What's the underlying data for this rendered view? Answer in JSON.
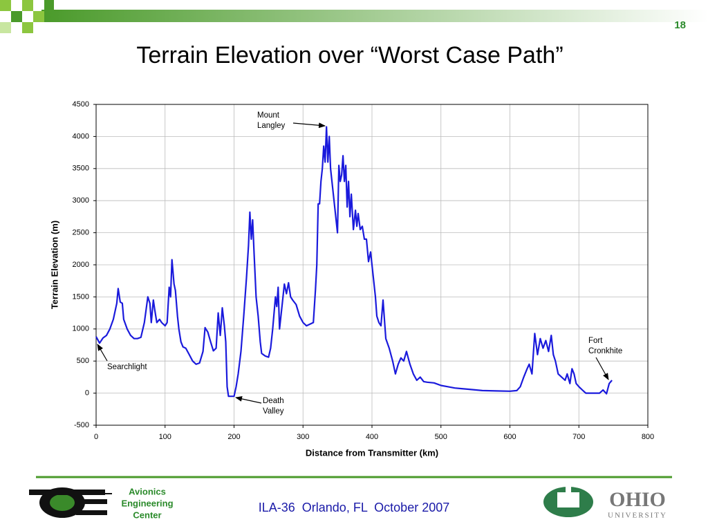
{
  "slide": {
    "page_number": "18",
    "footer": "ILA-36  Orlando, FL  October 2007",
    "left_logo": [
      "Avionics",
      "Engineering",
      "Center"
    ],
    "right_logo": [
      "OHIO",
      "UNIVERSITY"
    ]
  },
  "chart_data": {
    "type": "line",
    "title": "Terrain Elevation over “Worst Case Path”",
    "xlabel": "Distance from Transmitter (km)",
    "ylabel": "Terrain Elevation (m)",
    "color": "#1a1adc",
    "grid": true,
    "xlim": [
      0,
      800
    ],
    "xticks": [
      0,
      100,
      200,
      300,
      400,
      500,
      600,
      700,
      800
    ],
    "ylim": [
      -500,
      4500
    ],
    "yticks": [
      -500,
      0,
      500,
      1000,
      1500,
      2000,
      2500,
      3000,
      3500,
      4000,
      4500
    ],
    "annotations": [
      {
        "text": [
          "Mount",
          "Langley"
        ]
      },
      {
        "text": [
          "Searchlight"
        ]
      },
      {
        "text": [
          "Death",
          "Valley"
        ]
      },
      {
        "text": [
          "Fort",
          "Cronkhite"
        ]
      }
    ],
    "x": [
      0,
      5,
      10,
      15,
      20,
      25,
      30,
      32,
      35,
      38,
      40,
      45,
      50,
      55,
      60,
      65,
      70,
      75,
      78,
      80,
      83,
      85,
      88,
      92,
      95,
      100,
      103,
      106,
      108,
      110,
      113,
      115,
      118,
      120,
      123,
      126,
      130,
      135,
      140,
      145,
      150,
      155,
      158,
      162,
      166,
      170,
      174,
      177,
      180,
      183,
      186,
      188,
      190,
      192,
      200,
      203,
      206,
      210,
      214,
      218,
      221,
      223,
      225,
      227,
      229,
      232,
      235,
      238,
      240,
      245,
      250,
      253,
      256,
      260,
      262,
      264,
      266,
      268,
      270,
      273,
      276,
      279,
      282,
      285,
      290,
      295,
      300,
      305,
      315,
      318,
      320,
      322,
      324,
      326,
      328,
      330,
      332,
      334,
      336,
      338,
      340,
      342,
      345,
      348,
      350,
      352,
      354,
      356,
      358,
      360,
      362,
      364,
      366,
      368,
      370,
      373,
      376,
      378,
      380,
      383,
      386,
      389,
      392,
      395,
      398,
      400,
      402,
      405,
      407,
      410,
      413,
      416,
      418,
      420,
      425,
      430,
      434,
      438,
      442,
      446,
      450,
      455,
      460,
      465,
      470,
      475,
      480,
      490,
      500,
      510,
      520,
      530,
      540,
      560,
      580,
      600,
      610,
      615,
      620,
      625,
      628,
      632,
      636,
      640,
      644,
      648,
      652,
      656,
      660,
      663,
      666,
      670,
      675,
      680,
      683,
      687,
      690,
      693,
      696,
      700,
      705,
      710,
      720,
      730,
      735,
      740,
      744,
      748
    ],
    "values": [
      880,
      780,
      860,
      900,
      1000,
      1150,
      1400,
      1630,
      1420,
      1400,
      1150,
      1000,
      900,
      850,
      850,
      870,
      1100,
      1500,
      1400,
      1100,
      1450,
      1300,
      1100,
      1150,
      1100,
      1050,
      1100,
      1650,
      1500,
      2080,
      1700,
      1600,
      1200,
      1000,
      800,
      720,
      700,
      600,
      500,
      450,
      470,
      650,
      1020,
      950,
      800,
      660,
      700,
      1250,
      900,
      1330,
      1050,
      800,
      100,
      -50,
      -50,
      100,
      300,
      650,
      1200,
      1800,
      2300,
      2820,
      2400,
      2700,
      2200,
      1500,
      1200,
      800,
      620,
      580,
      560,
      700,
      1000,
      1500,
      1350,
      1650,
      1000,
      1200,
      1400,
      1700,
      1550,
      1720,
      1500,
      1450,
      1380,
      1200,
      1100,
      1050,
      1100,
      1600,
      2000,
      2950,
      2950,
      3300,
      3500,
      3850,
      3600,
      4150,
      3600,
      4000,
      3500,
      3300,
      3000,
      2700,
      2500,
      3550,
      3300,
      3400,
      3700,
      3300,
      3550,
      2900,
      3300,
      2750,
      3100,
      2550,
      2850,
      2600,
      2800,
      2550,
      2600,
      2400,
      2400,
      2050,
      2200,
      2000,
      1800,
      1500,
      1200,
      1100,
      1050,
      1450,
      1150,
      850,
      700,
      500,
      300,
      450,
      550,
      500,
      650,
      450,
      300,
      200,
      250,
      180,
      170,
      160,
      120,
      100,
      80,
      70,
      60,
      40,
      35,
      30,
      40,
      100,
      250,
      380,
      450,
      300,
      930,
      600,
      850,
      700,
      820,
      650,
      900,
      600,
      500,
      300,
      250,
      200,
      300,
      150,
      380,
      300,
      150,
      100,
      50,
      0,
      0,
      0,
      50,
      -10,
      150,
      200
    ]
  }
}
